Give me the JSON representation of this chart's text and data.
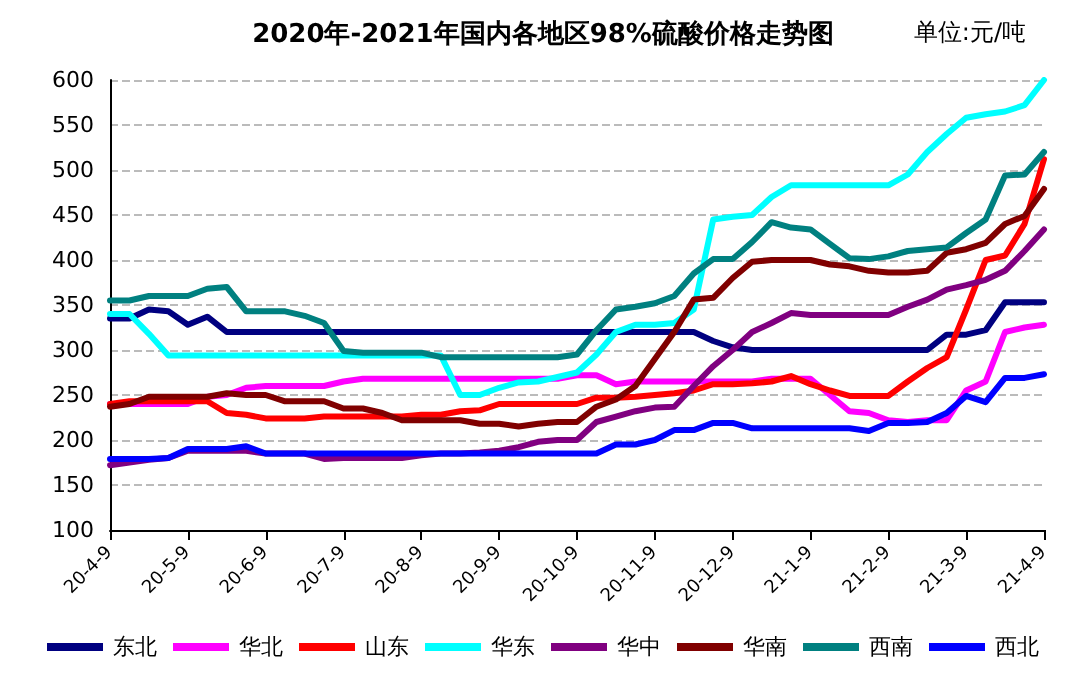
{
  "chart_data": {
    "type": "line",
    "title": "2020年-2021年国内各地区98%硫酸价格走势图",
    "annotations": [
      "单位:元/吨"
    ],
    "categories": [
      "20-4-9",
      null,
      null,
      null,
      "20-5-9",
      null,
      null,
      null,
      "20-6-9",
      null,
      null,
      null,
      "20-7-9",
      null,
      null,
      null,
      "20-8-9",
      null,
      null,
      null,
      "20-9-9",
      null,
      null,
      null,
      "20-10-9",
      null,
      null,
      null,
      "20-11-9",
      null,
      null,
      null,
      "20-12-9",
      null,
      null,
      null,
      "21-1-9",
      null,
      null,
      null,
      "21-2-9",
      null,
      null,
      null,
      "21-3-9",
      null,
      null,
      null,
      "21-4-9"
    ],
    "ylim": [
      100,
      600
    ],
    "yticks": [
      100,
      150,
      200,
      250,
      300,
      350,
      400,
      450,
      500,
      550,
      600
    ],
    "grid": "y",
    "legend": "bottom",
    "marker": "none",
    "line_style": "solid",
    "series": [
      {
        "name": "东北",
        "color": "#000080",
        "values": [
          335,
          335,
          345,
          343,
          328,
          337,
          320,
          320,
          320,
          320,
          320,
          320,
          320,
          320,
          320,
          320,
          320,
          320,
          320,
          320,
          320,
          320,
          320,
          320,
          320,
          320,
          320,
          320,
          320,
          320,
          320,
          310,
          303,
          300,
          300,
          300,
          300,
          300,
          300,
          300,
          300,
          300,
          300,
          317,
          317,
          322,
          353,
          353,
          353
        ]
      },
      {
        "name": "华北",
        "color": "#ff00ff",
        "values": [
          240,
          240,
          240,
          240,
          240,
          248,
          250,
          258,
          260,
          260,
          260,
          260,
          265,
          268,
          268,
          268,
          268,
          268,
          268,
          268,
          268,
          268,
          268,
          268,
          272,
          272,
          262,
          265,
          265,
          265,
          265,
          265,
          265,
          265,
          268,
          268,
          268,
          250,
          232,
          230,
          222,
          220,
          222,
          222,
          255,
          265,
          320,
          325,
          328
        ]
      },
      {
        "name": "山东",
        "color": "#ff0000",
        "values": [
          240,
          243,
          243,
          243,
          243,
          243,
          230,
          228,
          224,
          224,
          224,
          226,
          226,
          226,
          226,
          226,
          228,
          228,
          232,
          233,
          240,
          240,
          240,
          240,
          240,
          247,
          247,
          248,
          250,
          252,
          255,
          262,
          262,
          263,
          265,
          271,
          262,
          255,
          249,
          249,
          249,
          265,
          280,
          292,
          345,
          400,
          405,
          440,
          512
        ]
      },
      {
        "name": "华东",
        "color": "#00ffff",
        "values": [
          340,
          340,
          318,
          294,
          294,
          294,
          294,
          294,
          294,
          294,
          294,
          294,
          294,
          294,
          294,
          294,
          294,
          294,
          250,
          250,
          258,
          264,
          265,
          270,
          275,
          295,
          320,
          328,
          328,
          330,
          345,
          445,
          448,
          450,
          470,
          483,
          483,
          483,
          483,
          483,
          483,
          495,
          520,
          540,
          558,
          562,
          565,
          572,
          600
        ]
      },
      {
        "name": "华中",
        "color": "#800080",
        "values": [
          172,
          175,
          178,
          180,
          188,
          188,
          188,
          188,
          185,
          185,
          185,
          179,
          180,
          180,
          180,
          180,
          183,
          185,
          185,
          186,
          188,
          192,
          198,
          200,
          200,
          220,
          226,
          232,
          236,
          237,
          260,
          282,
          300,
          320,
          330,
          341,
          339,
          339,
          339,
          339,
          339,
          348,
          356,
          367,
          372,
          378,
          388,
          410,
          434
        ]
      },
      {
        "name": "华南",
        "color": "#800000",
        "values": [
          237,
          240,
          248,
          248,
          248,
          248,
          252,
          250,
          250,
          243,
          243,
          243,
          235,
          235,
          230,
          222,
          222,
          222,
          222,
          218,
          218,
          215,
          218,
          220,
          220,
          237,
          245,
          260,
          290,
          320,
          356,
          358,
          380,
          398,
          400,
          400,
          400,
          395,
          393,
          388,
          386,
          386,
          388,
          408,
          412,
          419,
          440,
          449,
          479
        ]
      },
      {
        "name": "西南",
        "color": "#008080",
        "values": [
          355,
          355,
          360,
          360,
          360,
          368,
          370,
          343,
          343,
          343,
          338,
          330,
          299,
          297,
          297,
          297,
          297,
          292,
          292,
          292,
          292,
          292,
          292,
          292,
          295,
          322,
          345,
          348,
          352,
          360,
          385,
          401,
          401,
          420,
          442,
          436,
          434,
          418,
          402,
          401,
          404,
          410,
          412,
          414,
          430,
          445,
          494,
          495,
          520
        ]
      },
      {
        "name": "西北",
        "color": "#0000ff",
        "values": [
          179,
          179,
          179,
          180,
          190,
          190,
          190,
          193,
          185,
          185,
          185,
          185,
          185,
          185,
          185,
          185,
          185,
          185,
          185,
          185,
          185,
          185,
          185,
          185,
          185,
          185,
          195,
          195,
          200,
          211,
          211,
          219,
          219,
          213,
          213,
          213,
          213,
          213,
          213,
          210,
          219,
          219,
          220,
          230,
          249,
          242,
          269,
          269,
          273
        ]
      }
    ]
  }
}
